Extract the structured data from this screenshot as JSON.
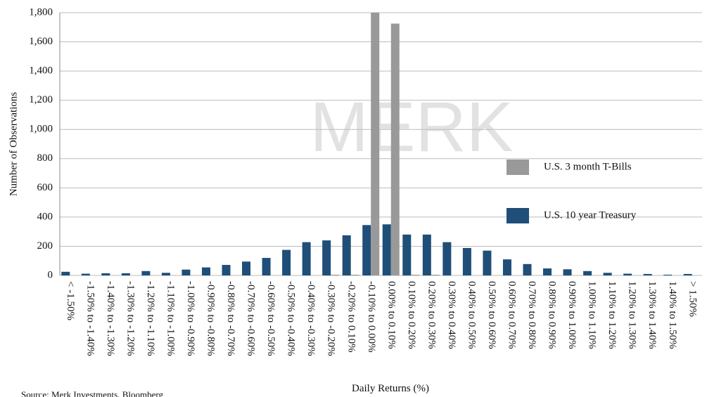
{
  "chart_data": {
    "type": "bar",
    "watermark": "MERK",
    "xlabel": "Daily Returns (%)",
    "ylabel": "Number of Observations",
    "source": "Source: Merk Investments, Bloomberg",
    "categories": [
      "< -1.50%",
      "-1.50% to -1.40%",
      "-1.40% to -1.30%",
      "-1.30% to -1.20%",
      "-1.20% to -1.10%",
      "-1.10% to -1.00%",
      "-1.00% to -0.90%",
      "-0.90% to -0.80%",
      "-0.80% to -0.70%",
      "-0.70% to -0.60%",
      "-0.60% to -0.50%",
      "-0.50% to -0.40%",
      "-0.40% to -0.30%",
      "-0.30% to -0.20%",
      "-0.20% to 0.10%",
      "-0.10% to 0.00%",
      "0.00% to 0.10%",
      "0.10% to 0.20%",
      "0.20% to 0.30%",
      "0.30% to 0.40%",
      "0.40% to 0.50%",
      "0.50% to 0.60%",
      "0.60% to 0.70%",
      "0.70% to 0.80%",
      "0.80% to 0.90%",
      "0.90% to 1.00%",
      "1.00% to 1.10%",
      "1.10% to 1.20%",
      "1.20% to 1.30%",
      "1.30% to 1.40%",
      "1.40% to 1.50%",
      "> 1.50%"
    ],
    "series": [
      {
        "name": "U.S. 10 year Treasury",
        "color": "#1f4e79",
        "values": [
          25,
          12,
          15,
          15,
          30,
          18,
          40,
          55,
          72,
          95,
          120,
          175,
          228,
          240,
          275,
          345,
          350,
          280,
          280,
          228,
          188,
          170,
          110,
          78,
          48,
          42,
          30,
          18,
          12,
          10,
          5,
          10
        ]
      },
      {
        "name": "U.S. 3 month T-Bills",
        "color": "#999999",
        "values": [
          0,
          0,
          0,
          0,
          0,
          0,
          0,
          0,
          0,
          0,
          0,
          0,
          0,
          5,
          5,
          1800,
          1725,
          5,
          5,
          0,
          0,
          0,
          0,
          0,
          0,
          0,
          0,
          0,
          0,
          0,
          0,
          0
        ]
      }
    ],
    "ylim": [
      0,
      1800
    ],
    "yticks": [
      0,
      200,
      400,
      600,
      800,
      {
        "value": 1000,
        "label": "1,000"
      },
      {
        "value": 1200,
        "label": "1,200"
      },
      {
        "value": 1400,
        "label": "1,400"
      },
      {
        "value": 1600,
        "label": "1,600"
      },
      {
        "value": 1800,
        "label": "1,800"
      }
    ],
    "grid": true
  }
}
